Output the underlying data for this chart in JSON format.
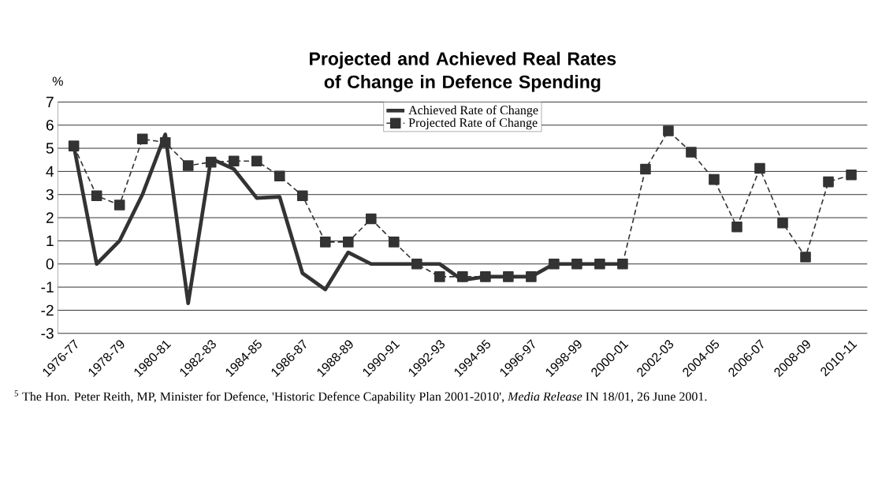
{
  "chart_data": {
    "type": "line",
    "title": "Projected and Achieved Real Rates of Change in Defence Spending",
    "ylabel": "%",
    "categories": [
      "1976-77",
      null,
      "1978-79",
      null,
      "1980-81",
      null,
      "1982-83",
      null,
      "1984-85",
      null,
      "1986-87",
      null,
      "1988-89",
      null,
      "1990-91",
      null,
      "1992-93",
      null,
      "1994-95",
      null,
      "1996-97",
      null,
      "1998-99",
      null,
      "2000-01",
      null,
      "2002-03",
      null,
      "2004-05",
      null,
      "2006-07",
      null,
      "2008-09",
      null,
      "2010-11"
    ],
    "series": [
      {
        "name": "Achieved Rate of Change",
        "color": "#333333",
        "line_style": "solid",
        "marker": "none",
        "values": [
          5.1,
          0,
          1.0,
          3.0,
          5.6,
          -1.7,
          4.55,
          4.1,
          2.85,
          2.9,
          -0.4,
          -1.1,
          0.5,
          0,
          0,
          0,
          0,
          -0.7,
          -0.55,
          -0.55,
          -0.55,
          0,
          0,
          0,
          0,
          null,
          null,
          null,
          null,
          null,
          null,
          null,
          null,
          null,
          null
        ]
      },
      {
        "name": "Projected Rate of Change",
        "color": "#333333",
        "line_style": "dashed",
        "marker": "square",
        "values": [
          5.1,
          2.95,
          2.55,
          5.4,
          5.25,
          4.25,
          4.4,
          4.45,
          4.45,
          3.8,
          2.95,
          0.95,
          0.95,
          1.95,
          0.95,
          0,
          -0.55,
          -0.55,
          -0.55,
          -0.55,
          -0.55,
          0,
          0,
          0,
          0,
          4.1,
          5.75,
          4.83,
          3.65,
          1.6,
          4.13,
          1.77,
          0.3,
          3.55,
          3.85
        ]
      }
    ],
    "ylim": [
      -3,
      7
    ],
    "yticks": [
      -3,
      -2,
      -1,
      0,
      1,
      2,
      3,
      4,
      5,
      6,
      7
    ],
    "grid": "y",
    "legend": "top",
    "annotations": [
      "$^{5}$ The Hon. Peter Reith, MP, Minister for Defence, 'Historic Defence Capability Plan 2001-2010', *Media Release* IN 18/01, 26 June 2001."
    ]
  }
}
